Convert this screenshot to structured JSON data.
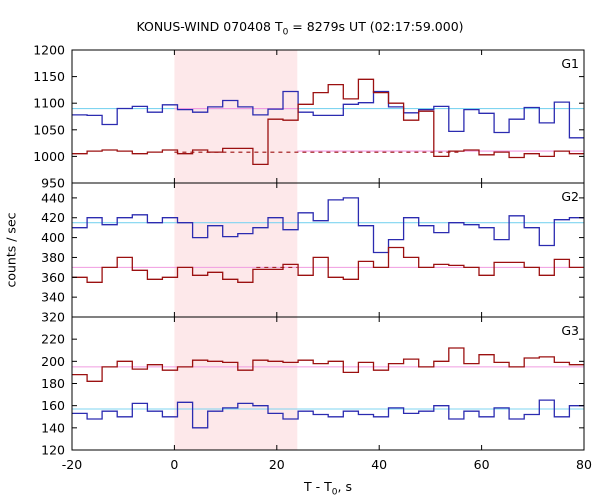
{
  "title": {
    "prefix": "KONUS-WIND 070408 T",
    "sub": "0",
    "suffix": " = 8279s UT (02:17:59.000)"
  },
  "xlabel": {
    "prefix": "T - T",
    "sub": "0",
    "suffix": ", s"
  },
  "ylabel": "counts / sec",
  "colors": {
    "blue": "#2b2bb0",
    "red": "#9b1010",
    "cyan": "#7fd4f0",
    "pink": "#f09ce0",
    "shade": "#fde8ea"
  },
  "chart_data": {
    "type": "line",
    "xlim": [
      -20,
      80
    ],
    "xticks": [
      -20,
      0,
      20,
      40,
      60,
      80
    ],
    "bin_width": 2.944,
    "bin_start": -20,
    "shaded_interval": [
      0,
      24
    ],
    "panels": [
      {
        "name": "G1",
        "ylim": [
          950,
          1200
        ],
        "yticks": [
          950,
          1000,
          1050,
          1100,
          1150,
          1200
        ],
        "ytick_labels": [
          "950",
          "1000",
          "1050",
          "1100",
          "1150",
          "1200"
        ],
        "series": [
          {
            "color": "blue",
            "values": [
              1078,
              1077,
              1060,
              1090,
              1094,
              1083,
              1097,
              1088,
              1083,
              1093,
              1105,
              1093,
              1078,
              1089,
              1122,
              1083,
              1077,
              1077,
              1098,
              1101,
              1122,
              1093,
              1082,
              1088,
              1094,
              1047,
              1088,
              1081,
              1045,
              1070,
              1092,
              1063,
              1102,
              1035,
              1098,
              1083,
              1072,
              1105,
              1075,
              1082,
              1097,
              1085,
              1075,
              1083,
              1078,
              1070,
              1092,
              1103,
              1045,
              1090,
              1100,
              1112,
              1076,
              1080
            ]
          },
          {
            "color": "red",
            "values": [
              1005,
              1010,
              1012,
              1010,
              1005,
              1008,
              1012,
              1005,
              1012,
              1008,
              1015,
              1015,
              985,
              1070,
              1068,
              1098,
              1120,
              1135,
              1108,
              1145,
              1120,
              1100,
              1068,
              1085,
              1000,
              1010,
              1012,
              1003,
              1008,
              998,
              1005,
              1000,
              1010,
              1005,
              1000,
              1010,
              1005,
              1000,
              1010,
              1002,
              1000,
              1005,
              1005,
              1010,
              1003,
              1005,
              1000,
              1005,
              1015,
              1045,
              1003,
              1008,
              1003,
              1005
            ]
          }
        ],
        "reference_lines": [
          {
            "color": "cyan",
            "value": 1090,
            "x_from": -20,
            "x_to": 80,
            "style": "solid"
          },
          {
            "color": "pink",
            "value": 1090,
            "x_from": 0,
            "x_to": 24,
            "style": "solid"
          },
          {
            "color": "pink",
            "value": 1010,
            "x_from": 24,
            "x_to": 80,
            "style": "solid"
          },
          {
            "color": "red",
            "value": 1008,
            "x_from": 0,
            "x_to": 56,
            "style": "dashed"
          }
        ]
      },
      {
        "name": "G2",
        "ylim": [
          320,
          455
        ],
        "yticks": [
          320,
          340,
          360,
          380,
          400,
          420,
          440
        ],
        "ytick_labels": [
          "320",
          "340",
          "360",
          "380",
          "400",
          "420",
          "440"
        ],
        "series": [
          {
            "color": "blue",
            "values": [
              410,
              420,
              413,
              420,
              423,
              415,
              420,
              415,
              400,
              412,
              401,
              404,
              410,
              420,
              408,
              425,
              417,
              438,
              440,
              412,
              385,
              398,
              420,
              412,
              405,
              415,
              413,
              410,
              398,
              422,
              410,
              392,
              418,
              420,
              415,
              405,
              418,
              405,
              412,
              405,
              425,
              416,
              398,
              408,
              420,
              403,
              411,
              413,
              423,
              416,
              405,
              420,
              414,
              408
            ]
          },
          {
            "color": "red",
            "values": [
              360,
              355,
              370,
              380,
              367,
              358,
              360,
              370,
              362,
              365,
              358,
              355,
              368,
              368,
              373,
              362,
              380,
              360,
              358,
              376,
              370,
              390,
              380,
              370,
              373,
              372,
              370,
              362,
              375,
              375,
              370,
              362,
              378,
              370,
              375,
              380,
              358,
              372,
              370,
              362,
              378,
              370,
              373,
              355,
              375,
              368,
              383,
              368,
              372,
              370,
              385,
              380,
              362,
              367
            ]
          }
        ],
        "reference_lines": [
          {
            "color": "cyan",
            "value": 415,
            "x_from": -20,
            "x_to": 80,
            "style": "solid"
          },
          {
            "color": "pink",
            "value": 370,
            "x_from": -20,
            "x_to": 80,
            "style": "solid"
          },
          {
            "color": "red",
            "value": 370,
            "x_from": 16,
            "x_to": 24,
            "style": "dashed"
          }
        ]
      },
      {
        "name": "G3",
        "ylim": [
          120,
          240
        ],
        "yticks": [
          120,
          140,
          160,
          180,
          200,
          220
        ],
        "ytick_labels": [
          "120",
          "140",
          "160",
          "180",
          "200",
          "220"
        ],
        "series": [
          {
            "color": "blue",
            "values": [
              153,
              148,
              155,
              150,
              162,
              155,
              150,
              163,
              140,
              155,
              158,
              162,
              160,
              153,
              148,
              155,
              152,
              150,
              155,
              152,
              150,
              158,
              153,
              155,
              160,
              148,
              155,
              150,
              158,
              148,
              152,
              165,
              150,
              160,
              155,
              158,
              155,
              153,
              158,
              150,
              160,
              155,
              153,
              150,
              158,
              160,
              148,
              155,
              160,
              150,
              165,
              155,
              158,
              152
            ]
          },
          {
            "color": "red",
            "values": [
              188,
              182,
              195,
              200,
              193,
              197,
              192,
              195,
              201,
              200,
              199,
              192,
              201,
              200,
              199,
              201,
              198,
              200,
              190,
              199,
              192,
              198,
              202,
              195,
              200,
              212,
              198,
              206,
              199,
              195,
              203,
              204,
              199,
              197,
              200,
              205,
              198,
              198,
              200,
              203,
              193,
              200,
              197,
              205,
              198,
              193,
              185,
              188,
              198,
              195,
              195,
              202,
              198,
              196
            ]
          }
        ],
        "reference_lines": [
          {
            "color": "cyan",
            "value": 157,
            "x_from": -20,
            "x_to": 80,
            "style": "solid"
          },
          {
            "color": "pink",
            "value": 195,
            "x_from": -20,
            "x_to": 80,
            "style": "solid"
          }
        ]
      }
    ]
  }
}
